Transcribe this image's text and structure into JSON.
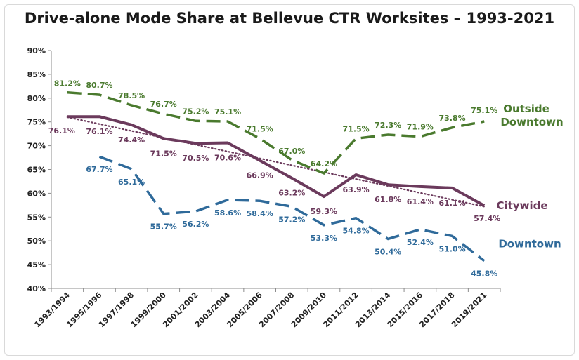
{
  "chart_data": {
    "type": "line",
    "title": "Drive-alone Mode Share at Bellevue CTR Worksites – 1993-2021",
    "xlabel": "",
    "ylabel": "",
    "ylim": [
      40,
      90
    ],
    "y_tick_labels": [
      "40%",
      "45%",
      "50%",
      "55%",
      "60%",
      "65%",
      "70%",
      "75%",
      "80%",
      "85%",
      "90%"
    ],
    "grid": false,
    "categories": [
      "1993/1994",
      "1995/1996",
      "1997/1998",
      "1999/2000",
      "2001/2002",
      "2003/2004",
      "2005/2006",
      "2007/2008",
      "2009/2010",
      "2011/2012",
      "2013/2014",
      "2015/2016",
      "2017/2018",
      "2019/2021"
    ],
    "series": [
      {
        "name_lines": [
          "Outside",
          "Downtown"
        ],
        "color": "#4a7a2e",
        "style": "dashed",
        "values": [
          81.2,
          80.7,
          78.5,
          76.7,
          75.2,
          75.1,
          71.5,
          67.0,
          64.2,
          71.5,
          72.3,
          71.9,
          73.8,
          75.1
        ],
        "labels": [
          "81.2%",
          "80.7%",
          "78.5%",
          "76.7%",
          "75.2%",
          "75.1%",
          "71.5%",
          "67.0%",
          "64.2%",
          "71.5%",
          "72.3%",
          "71.9%",
          "73.8%",
          "75.1%"
        ]
      },
      {
        "name_lines": [
          "Citywide"
        ],
        "color": "#6b3a5c",
        "style": "solid",
        "values": [
          76.1,
          76.1,
          74.4,
          71.5,
          70.5,
          70.6,
          66.9,
          63.2,
          59.3,
          63.9,
          61.8,
          61.4,
          61.1,
          57.4
        ],
        "labels": [
          "76.1%",
          "76.1%",
          "74.4%",
          "71.5%",
          "70.5%",
          "70.6%",
          "66.9%",
          "63.2%",
          "59.3%",
          "63.9%",
          "61.8%",
          "61.4%",
          "61.1%",
          "57.4%"
        ],
        "trendline": {
          "style": "dotted",
          "from": 76.0,
          "to": 57.2
        }
      },
      {
        "name_lines": [
          "Downtown"
        ],
        "color": "#2f6a9a",
        "style": "dashed",
        "values": [
          null,
          67.7,
          65.1,
          55.7,
          56.2,
          58.6,
          58.4,
          57.2,
          53.3,
          54.8,
          50.4,
          52.4,
          51.0,
          45.8
        ],
        "labels": [
          null,
          "67.7%",
          "65.1%",
          "55.7%",
          "56.2%",
          "58.6%",
          "58.4%",
          "57.2%",
          "53.3%",
          "54.8%",
          "50.4%",
          "52.4%",
          "51.0%",
          "45.8%"
        ]
      }
    ]
  }
}
